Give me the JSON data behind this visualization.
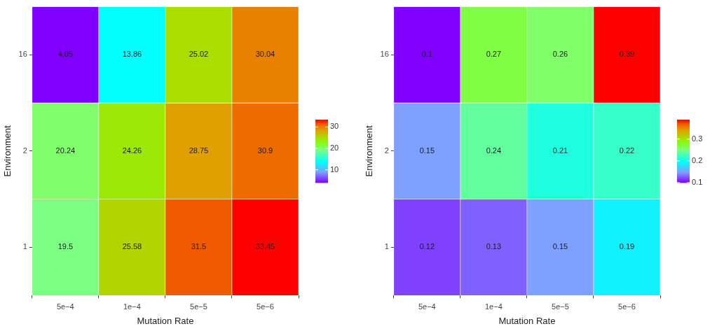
{
  "chart_data": [
    {
      "type": "heatmap",
      "xlabel": "Mutation Rate",
      "ylabel": "Environment",
      "categories": [
        "5e−4",
        "1e−4",
        "5e−5",
        "5e−6"
      ],
      "y_categories": [
        "16",
        "2",
        "1"
      ],
      "cells": [
        [
          4.05,
          13.86,
          25.02,
          30.04
        ],
        [
          20.24,
          24.26,
          28.75,
          30.9
        ],
        [
          19.5,
          25.58,
          31.5,
          33.45
        ]
      ],
      "data_labels": true,
      "clim": [
        4.05,
        33.45
      ],
      "cticks": [
        10,
        20,
        30
      ]
    },
    {
      "type": "heatmap",
      "xlabel": "Mutation Rate",
      "ylabel": "Environment",
      "categories": [
        "5e−4",
        "1e−4",
        "5e−5",
        "5e−6"
      ],
      "y_categories": [
        "16",
        "2",
        "1"
      ],
      "cells": [
        [
          0.1,
          0.27,
          0.26,
          0.39
        ],
        [
          0.15,
          0.24,
          0.21,
          0.22
        ],
        [
          0.12,
          0.13,
          0.15,
          0.19
        ]
      ],
      "data_labels": true,
      "clim": [
        0.1,
        0.39
      ],
      "cticks": [
        0.1,
        0.2,
        0.3
      ]
    }
  ]
}
